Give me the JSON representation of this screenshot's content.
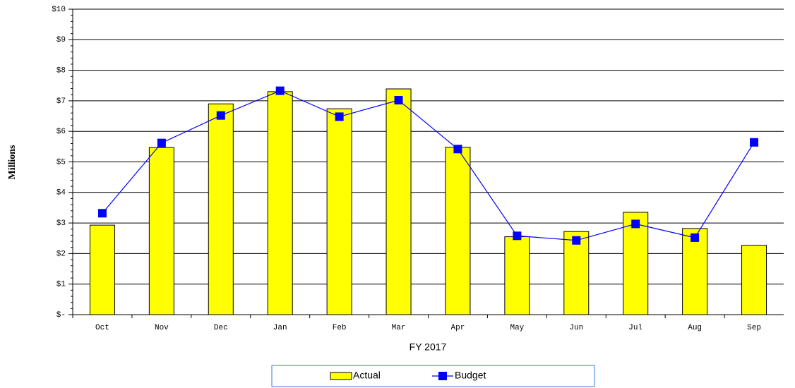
{
  "chart_data": {
    "type": "bar",
    "y_label": "Millions",
    "x_label": "FY 2017",
    "categories": [
      "Oct",
      "Nov",
      "Dec",
      "Jan",
      "Feb",
      "Mar",
      "Apr",
      "May",
      "Jun",
      "Jul",
      "Aug",
      "Sep"
    ],
    "series": [
      {
        "name": "Actual",
        "type": "bar",
        "color": "#ffff00",
        "values": [
          2.93,
          5.47,
          6.9,
          7.3,
          6.74,
          7.39,
          5.48,
          2.55,
          2.72,
          3.35,
          2.82,
          2.27
        ]
      },
      {
        "name": "Budget",
        "type": "line",
        "color": "#0000ff",
        "values": [
          3.32,
          5.62,
          6.52,
          7.33,
          6.48,
          7.02,
          5.42,
          2.58,
          2.43,
          2.97,
          2.52,
          5.64
        ]
      }
    ],
    "ylim": [
      0,
      10
    ],
    "yticks": [
      {
        "value": 0,
        "label": "$-"
      },
      {
        "value": 1,
        "label": "$1"
      },
      {
        "value": 2,
        "label": "$2"
      },
      {
        "value": 3,
        "label": "$3"
      },
      {
        "value": 4,
        "label": "$4"
      },
      {
        "value": 5,
        "label": "$5"
      },
      {
        "value": 6,
        "label": "$6"
      },
      {
        "value": 7,
        "label": "$7"
      },
      {
        "value": 8,
        "label": "$8"
      },
      {
        "value": 9,
        "label": "$9"
      },
      {
        "value": 10,
        "label": "$10"
      }
    ],
    "grid": true,
    "legend": "bottom"
  }
}
